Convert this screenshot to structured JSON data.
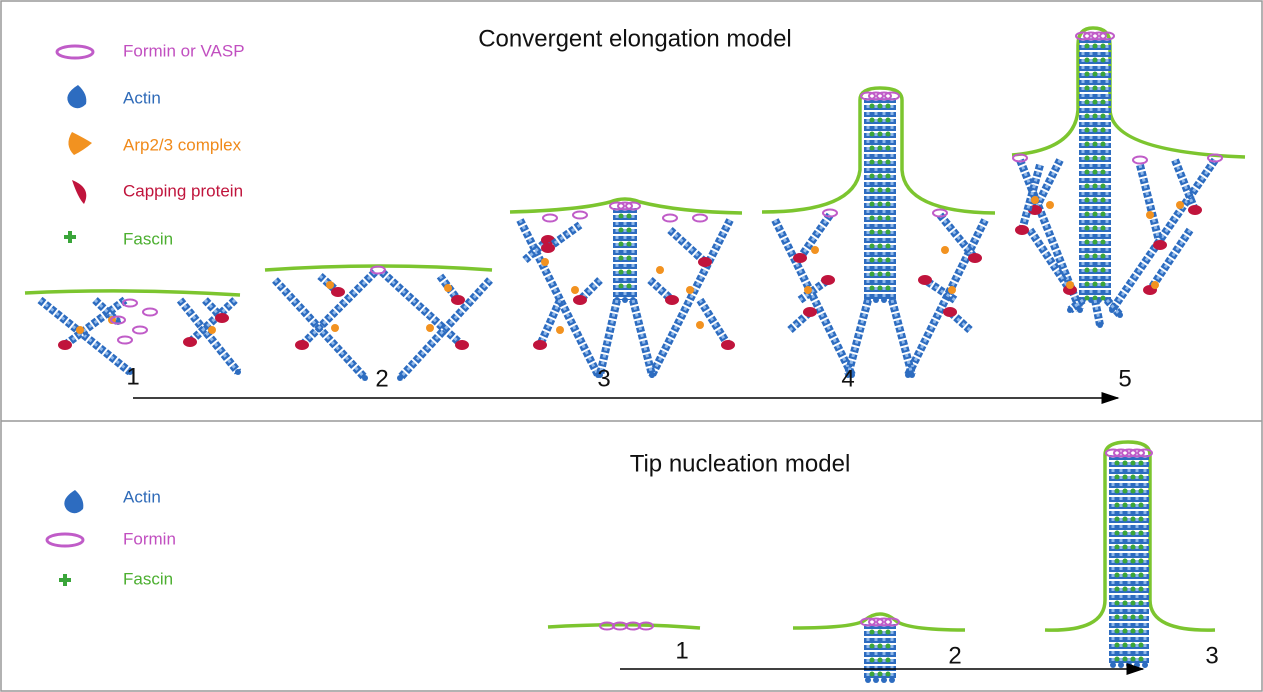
{
  "panels": [
    {
      "title": "Convergent elongation model",
      "legend": [
        {
          "label": "Formin or VASP"
        },
        {
          "label": "Actin"
        },
        {
          "label": "Arp2/3 complex"
        },
        {
          "label": "Capping protein"
        },
        {
          "label": "Fascin"
        }
      ],
      "steps": [
        "1",
        "2",
        "3",
        "4",
        "5"
      ]
    },
    {
      "title": "Tip nucleation model",
      "legend": [
        {
          "label": "Actin"
        },
        {
          "label": "Formin"
        },
        {
          "label": "Fascin"
        }
      ],
      "steps": [
        "1",
        "2",
        "3"
      ]
    }
  ]
}
